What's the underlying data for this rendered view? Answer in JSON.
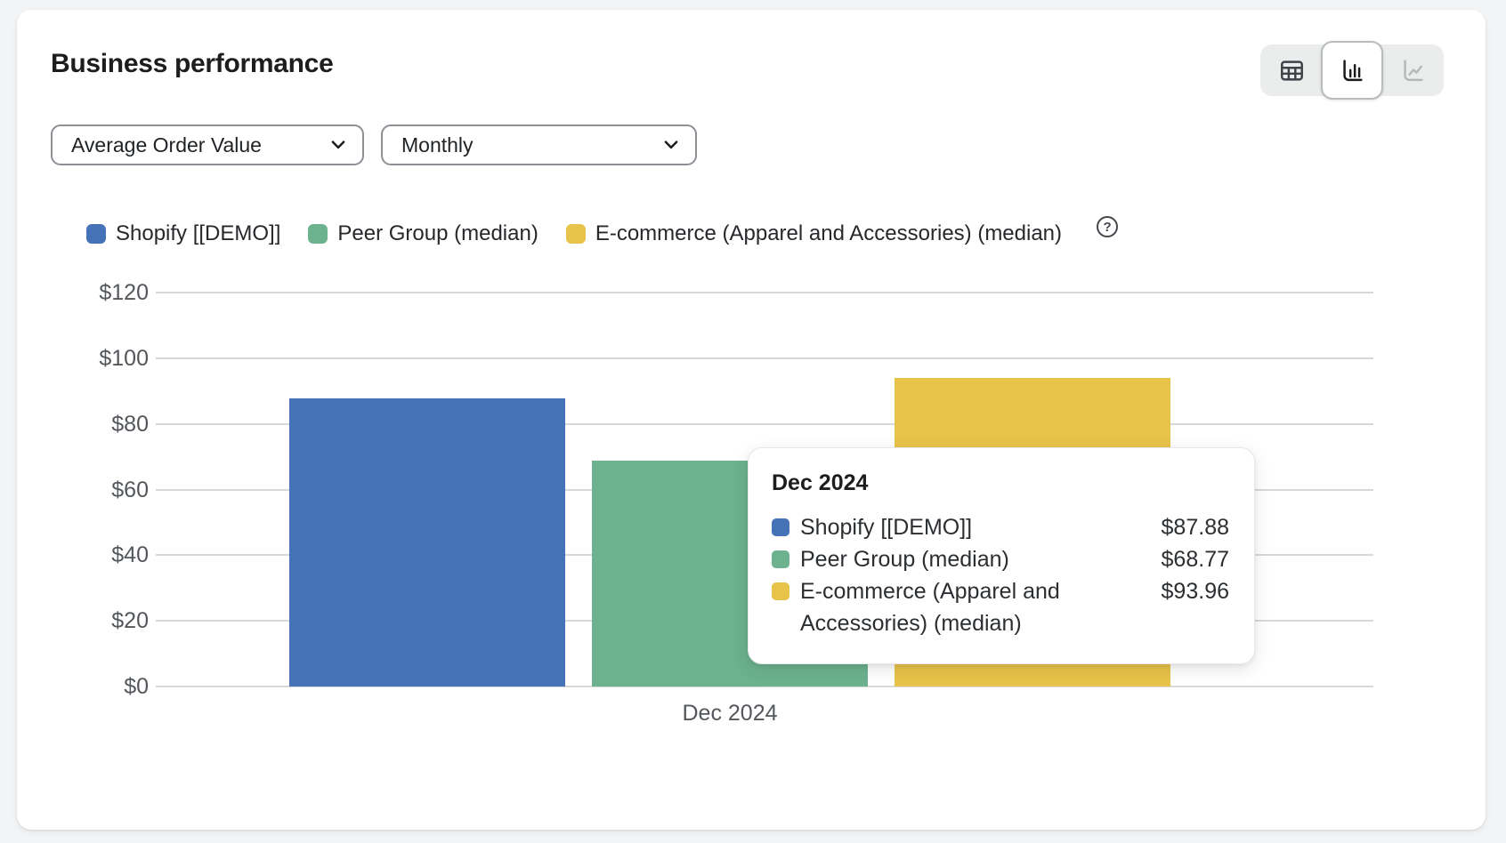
{
  "card": {
    "title": "Business performance"
  },
  "view_toggle": {
    "options": [
      {
        "icon": "table-icon",
        "name": "table-view-button",
        "selected": false,
        "disabled": false
      },
      {
        "icon": "bar-chart-icon",
        "name": "bar-chart-view-button",
        "selected": true,
        "disabled": false
      },
      {
        "icon": "line-chart-icon",
        "name": "line-chart-view-button",
        "selected": false,
        "disabled": true
      }
    ]
  },
  "filters": {
    "metric": {
      "value": "Average Order Value"
    },
    "granularity": {
      "value": "Monthly"
    }
  },
  "legend": {
    "items": [
      {
        "label": "Shopify [[DEMO]]",
        "color": "#4673b7"
      },
      {
        "label": "Peer Group (median)",
        "color": "#6cb28e"
      },
      {
        "label": "E-commerce (Apparel and Accessories) (median)",
        "color": "#e8c34a"
      }
    ],
    "help_icon": "?"
  },
  "chart_data": {
    "type": "bar",
    "categories": [
      "Dec 2024"
    ],
    "series": [
      {
        "name": "Shopify [[DEMO]]",
        "color": "#4673b7",
        "values": [
          87.88
        ]
      },
      {
        "name": "Peer Group (median)",
        "color": "#6cb28e",
        "values": [
          68.77
        ]
      },
      {
        "name": "E-commerce (Apparel and Accessories) (median)",
        "color": "#e8c34a",
        "values": [
          93.96
        ]
      }
    ],
    "xlabel": "",
    "ylabel": "",
    "ylim": [
      0,
      120
    ],
    "ytick_step": 20,
    "ytick_labels": [
      "$0",
      "$20",
      "$40",
      "$60",
      "$80",
      "$100",
      "$120"
    ],
    "currency_prefix": "$",
    "grid": true,
    "legend_position": "top"
  },
  "tooltip": {
    "title": "Dec 2024",
    "rows": [
      {
        "label": "Shopify [[DEMO]]",
        "value": "$87.88",
        "color": "#4673b7"
      },
      {
        "label": "Peer Group (median)",
        "value": "$68.77",
        "color": "#6cb28e"
      },
      {
        "label": "E-commerce (Apparel and Accessories) (median)",
        "value": "$93.96",
        "color": "#e8c34a"
      }
    ]
  },
  "colors": {
    "bar_blue": "#4673b7",
    "bar_green": "#6cb28e",
    "bar_yellow": "#e8c34a",
    "gridline": "#d7d8da",
    "axis_text": "#53575b"
  }
}
